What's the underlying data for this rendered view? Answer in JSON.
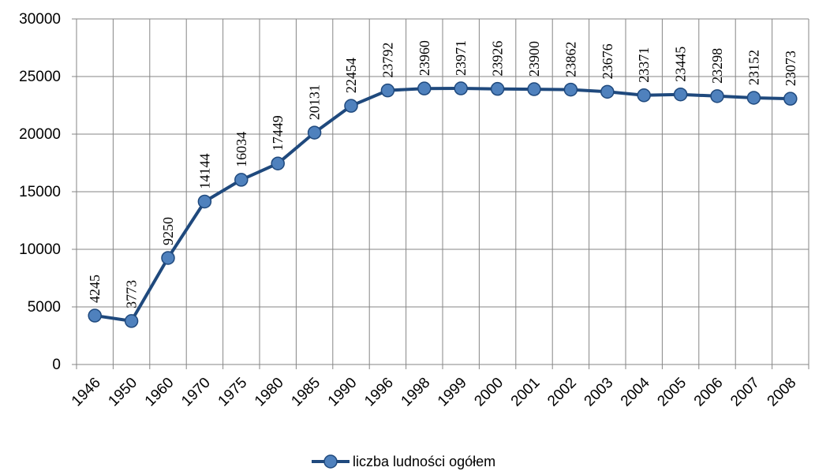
{
  "chart_data": {
    "type": "line",
    "categories": [
      "1946",
      "1950",
      "1960",
      "1970",
      "1975",
      "1980",
      "1985",
      "1990",
      "1996",
      "1998",
      "1999",
      "2000",
      "2001",
      "2002",
      "2003",
      "2004",
      "2005",
      "2006",
      "2007",
      "2008"
    ],
    "series": [
      {
        "name": "liczba ludności ogółem",
        "values": [
          4245,
          3773,
          9250,
          14144,
          16034,
          17449,
          20131,
          22454,
          23792,
          23960,
          23971,
          23926,
          23900,
          23862,
          23676,
          23371,
          23445,
          23298,
          23152,
          23073
        ],
        "color": "#1F497D",
        "marker_color": "#4F81BD"
      }
    ],
    "ylim": [
      0,
      30000
    ],
    "yticks": [
      "0",
      "5000",
      "10000",
      "15000",
      "20000",
      "25000",
      "30000"
    ],
    "grid": true,
    "legend_position": "bottom",
    "data_labels": true
  }
}
